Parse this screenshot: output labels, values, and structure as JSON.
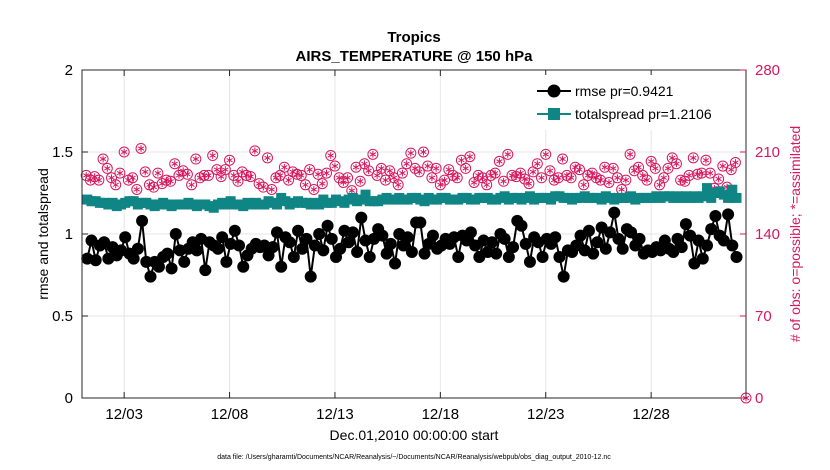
{
  "chart_data": {
    "type": "line",
    "title": "Tropics",
    "subtitle": "AIRS_TEMPERATURE @ 150 hPa",
    "xlabel": "Dec.01,2010 00:00:00 start",
    "ylabel": "rmse and totalspread",
    "y2label": "# of obs: o=possible; *=assimilated",
    "xlim": [
      0,
      31.5
    ],
    "ylim": [
      0,
      2
    ],
    "y2lim": [
      0,
      280
    ],
    "x_tick_values": [
      2,
      7,
      12,
      17,
      22,
      27
    ],
    "x_tick_labels": [
      "12/03",
      "12/08",
      "12/13",
      "12/18",
      "12/23",
      "12/28"
    ],
    "y_tick_labels": [
      "0",
      "0.5",
      "1",
      "1.5",
      "2"
    ],
    "y2_tick_labels": [
      "0",
      "70",
      "140",
      "210",
      "280"
    ],
    "grid": true,
    "legend_position": "top-right",
    "colors": {
      "rmse": "#000000",
      "spread": "#0f8585",
      "obs": "#d6185e"
    },
    "series": [
      {
        "name": "rmse pr=0.9421",
        "axis": "left",
        "values": [
          0.85,
          0.96,
          0.84,
          0.93,
          0.95,
          0.85,
          0.92,
          0.87,
          0.9,
          0.98,
          0.88,
          0.85,
          0.91,
          1.08,
          0.83,
          0.74,
          0.83,
          0.8,
          0.86,
          0.88,
          0.79,
          1.0,
          0.9,
          0.83,
          0.91,
          0.95,
          0.9,
          0.97,
          0.78,
          0.95,
          0.93,
          0.91,
          0.98,
          0.83,
          0.94,
          1.02,
          0.93,
          0.8,
          0.87,
          0.91,
          0.94,
          0.92,
          0.93,
          0.87,
          0.92,
          1.01,
          0.8,
          0.98,
          0.95,
          0.86,
          1.02,
          0.91,
          0.97,
          0.74,
          0.93,
          1.0,
          0.9,
          1.05,
          0.97,
          0.86,
          0.91,
          1.02,
          0.95,
          1.01,
          0.89,
          1.1,
          0.96,
          0.86,
          0.97,
          1.03,
          0.99,
          0.88,
          0.94,
          0.82,
          1.0,
          0.93,
          0.98,
          0.89,
          1.07,
          1.07,
          0.88,
          0.94,
          0.99,
          0.91,
          0.93,
          0.97,
          0.94,
          0.98,
          0.86,
          0.99,
          0.96,
          1.01,
          0.93,
          0.86,
          0.96,
          0.89,
          0.95,
          0.88,
          1.0,
          0.97,
          0.86,
          0.92,
          1.08,
          1.05,
          0.94,
          0.83,
          0.98,
          0.95,
          0.86,
          0.97,
          0.94,
          0.98,
          0.86,
          0.74,
          0.9,
          0.89,
          0.93,
          0.99,
          0.9,
          1.02,
          0.88,
          0.95,
          1.04,
          0.91,
          1.01,
          1.13,
          0.97,
          0.91,
          1.03,
          1.01,
          0.93,
          0.97,
          0.88,
          0.9,
          0.89,
          0.92,
          0.9,
          0.96,
          0.91,
          0.89,
          0.97,
          0.92,
          1.06,
          0.99,
          0.82,
          0.96,
          0.85,
          0.93,
          1.03,
          1.11,
          0.99,
          0.96,
          1.12,
          0.93,
          0.86
        ],
        "x_start": 0.25,
        "x_step": 0.2
      },
      {
        "name": "totalspread pr=1.2106",
        "axis": "left",
        "values": [
          1.21,
          1.2,
          1.2,
          1.19,
          1.19,
          1.18,
          1.19,
          1.17,
          1.18,
          1.19,
          1.2,
          1.2,
          1.18,
          1.19,
          1.19,
          1.18,
          1.17,
          1.18,
          1.19,
          1.18,
          1.17,
          1.18,
          1.18,
          1.18,
          1.19,
          1.18,
          1.17,
          1.18,
          1.18,
          1.17,
          1.16,
          1.18,
          1.19,
          1.18,
          1.2,
          1.18,
          1.18,
          1.17,
          1.19,
          1.18,
          1.19,
          1.18,
          1.18,
          1.2,
          1.19,
          1.18,
          1.22,
          1.2,
          1.18,
          1.19,
          1.2,
          1.19,
          1.19,
          1.18,
          1.19,
          1.18,
          1.21,
          1.19,
          1.19,
          1.21,
          1.2,
          1.19,
          1.21,
          1.22,
          1.2,
          1.21,
          1.24,
          1.2,
          1.2,
          1.2,
          1.21,
          1.22,
          1.21,
          1.21,
          1.22,
          1.21,
          1.21,
          1.22,
          1.22,
          1.21,
          1.2,
          1.22,
          1.21,
          1.21,
          1.22,
          1.22,
          1.21,
          1.21,
          1.21,
          1.22,
          1.22,
          1.21,
          1.21,
          1.22,
          1.22,
          1.22,
          1.21,
          1.21,
          1.22,
          1.23,
          1.21,
          1.22,
          1.22,
          1.21,
          1.22,
          1.23,
          1.21,
          1.22,
          1.22,
          1.22,
          1.21,
          1.23,
          1.23,
          1.22,
          1.22,
          1.21,
          1.22,
          1.22,
          1.23,
          1.22,
          1.22,
          1.22,
          1.21,
          1.23,
          1.22,
          1.21,
          1.22,
          1.22,
          1.22,
          1.23,
          1.21,
          1.22,
          1.22,
          1.22,
          1.22,
          1.23,
          1.22,
          1.23,
          1.23,
          1.22,
          1.23,
          1.22,
          1.23,
          1.22,
          1.23,
          1.22,
          1.23,
          1.28,
          1.22,
          1.25,
          1.26,
          1.24,
          1.22,
          1.27,
          1.22
        ],
        "x_start": 0.25,
        "x_step": 0.2
      },
      {
        "name": "# of obs possible",
        "axis": "right",
        "values": [
          190,
          186,
          189,
          186,
          204,
          196,
          188,
          182,
          192,
          210,
          186,
          188,
          178,
          213,
          193,
          182,
          180,
          192,
          183,
          186,
          185,
          200,
          190,
          194,
          191,
          182,
          204,
          188,
          190,
          190,
          207,
          195,
          189,
          195,
          203,
          190,
          185,
          193,
          190,
          189,
          211,
          183,
          180,
          205,
          178,
          188,
          190,
          197,
          186,
          193,
          191,
          190,
          182,
          195,
          178,
          191,
          183,
          192,
          207,
          198,
          188,
          184,
          188,
          177,
          197,
          185,
          200,
          194,
          208,
          190,
          196,
          186,
          194,
          188,
          182,
          192,
          200,
          209,
          196,
          193,
          210,
          198,
          188,
          196,
          182,
          186,
          195,
          190,
          188,
          203,
          196,
          206,
          184,
          190,
          188,
          182,
          190,
          192,
          202,
          185,
          208,
          190,
          189,
          192,
          187,
          183,
          193,
          200,
          188,
          208,
          194,
          186,
          188,
          204,
          190,
          188,
          197,
          195,
          182,
          190,
          192,
          188,
          186,
          197,
          184,
          196,
          188,
          178,
          186,
          208,
          194,
          197,
          190,
          186,
          202,
          196,
          182,
          188,
          196,
          205,
          200,
          186,
          185,
          190,
          205,
          191,
          192,
          203,
          192,
          179,
          187,
          198,
          180,
          195,
          201
        ],
        "x_start": 0.2,
        "x_step": 0.2
      }
    ],
    "footnote": "data file: /Users/gharamti/Documents/NCAR/Reanalysis/~/Documents/NCAR/Reanalysis/webpub/obs_diag_output_2010-12.nc"
  }
}
